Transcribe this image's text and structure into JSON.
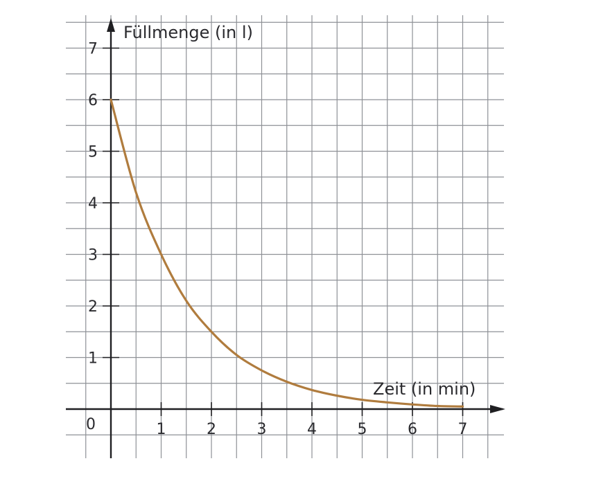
{
  "chart_data": {
    "type": "line",
    "title": "",
    "xlabel": "Zeit (in min)",
    "ylabel": "Füllmenge (in l)",
    "origin_label": "0",
    "x_ticks": [
      "1",
      "2",
      "3",
      "4",
      "5",
      "6",
      "7"
    ],
    "y_ticks": [
      "1",
      "2",
      "3",
      "4",
      "5",
      "6",
      "7"
    ],
    "xlim": [
      0,
      7.5
    ],
    "ylim": [
      0,
      7.5
    ],
    "grid": true,
    "grid_step": 0.5,
    "series": [
      {
        "color": "#b07c3e",
        "x": [
          0,
          0.5,
          1,
          1.5,
          2,
          2.5,
          3,
          3.5,
          4,
          4.5,
          5,
          5.5,
          6,
          6.5,
          7
        ],
        "y": [
          6.0,
          4.2,
          3.0,
          2.1,
          1.5,
          1.05,
          0.75,
          0.53,
          0.37,
          0.26,
          0.18,
          0.13,
          0.09,
          0.06,
          0.05
        ]
      }
    ]
  }
}
